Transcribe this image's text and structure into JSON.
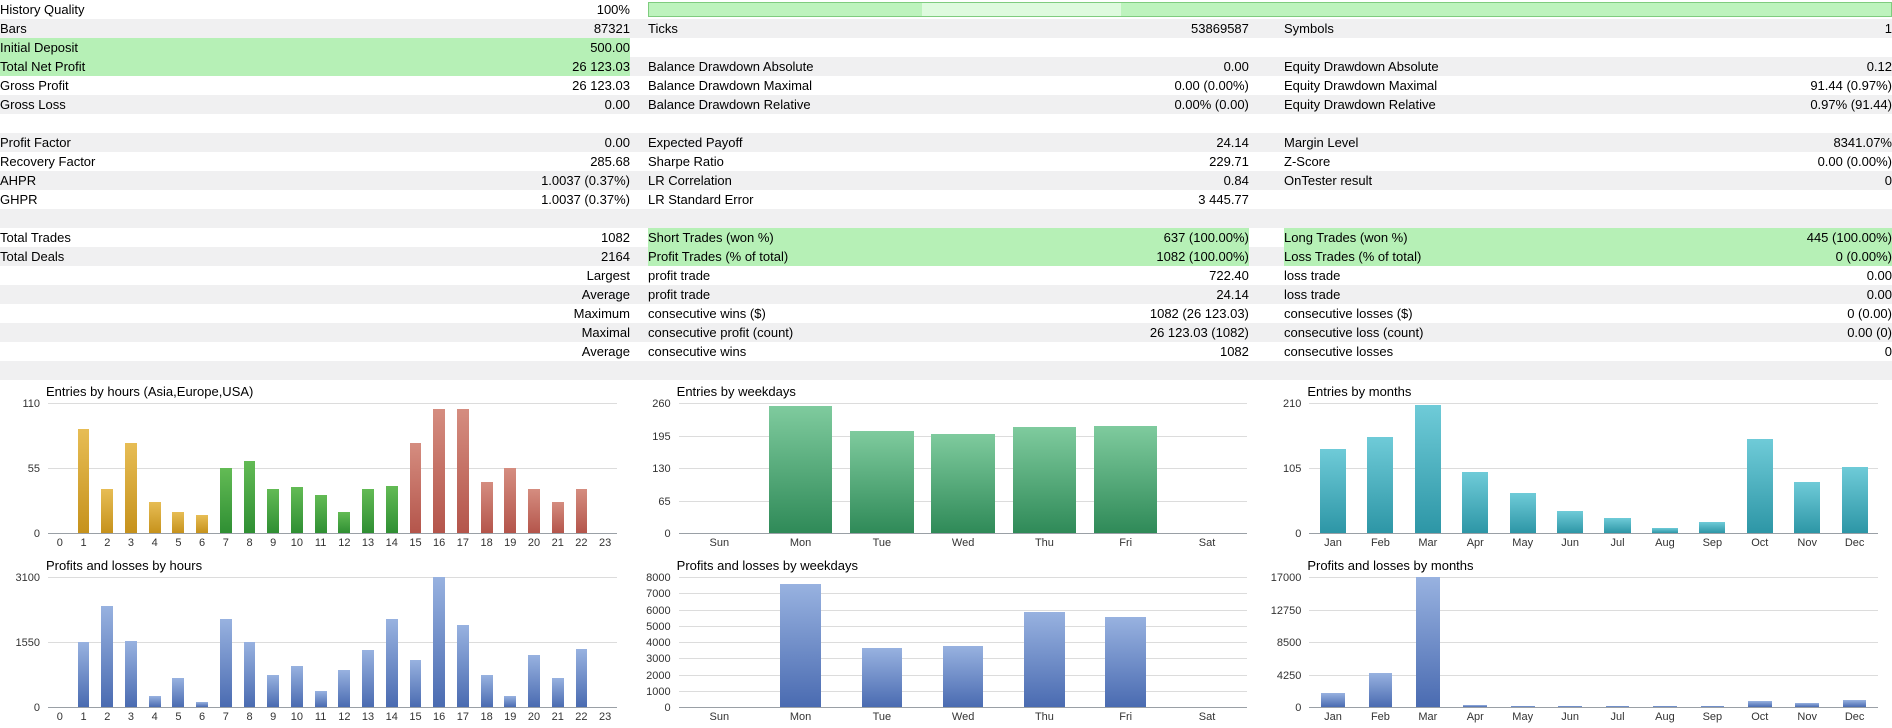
{
  "report": {
    "highlight_color": "#b6f0b6",
    "alt_row_color": "#f0f0f1",
    "history_quality_bar_color": "#bdf3bd",
    "rows": [
      {
        "l1": "History Quality",
        "v1": "100%",
        "progress": true
      },
      {
        "l1": "Bars",
        "v1": "87321",
        "l2": "Ticks",
        "v2": "53869587",
        "l3": "Symbols",
        "v3": "1"
      },
      {
        "l1": "Initial Deposit",
        "v1": "500.00",
        "hl": [
          "left"
        ]
      },
      {
        "l1": "Total Net Profit",
        "v1": "26 123.03",
        "l2": "Balance Drawdown Absolute",
        "v2": "0.00",
        "l3": "Equity Drawdown Absolute",
        "v3": "0.12",
        "hl": [
          "left"
        ]
      },
      {
        "l1": "Gross Profit",
        "v1": "26 123.03",
        "l2": "Balance Drawdown Maximal",
        "v2": "0.00 (0.00%)",
        "l3": "Equity Drawdown Maximal",
        "v3": "91.44 (0.97%)"
      },
      {
        "l1": "Gross Loss",
        "v1": "0.00",
        "l2": "Balance Drawdown Relative",
        "v2": "0.00% (0.00)",
        "l3": "Equity Drawdown Relative",
        "v3": "0.97% (91.44)"
      },
      {},
      {
        "l1": "Profit Factor",
        "v1": "0.00",
        "l2": "Expected Payoff",
        "v2": "24.14",
        "l3": "Margin Level",
        "v3": "8341.07%"
      },
      {
        "l1": "Recovery Factor",
        "v1": "285.68",
        "l2": "Sharpe Ratio",
        "v2": "229.71",
        "l3": "Z-Score",
        "v3": "0.00 (0.00%)"
      },
      {
        "l1": "AHPR",
        "v1": "1.0037 (0.37%)",
        "l2": "LR Correlation",
        "v2": "0.84",
        "l3": "OnTester result",
        "v3": "0"
      },
      {
        "l1": "GHPR",
        "v1": "1.0037 (0.37%)",
        "l2": "LR Standard Error",
        "v2": "3 445.77"
      },
      {},
      {
        "l1": "Total Trades",
        "v1": "1082",
        "l2": "Short Trades (won %)",
        "v2": "637 (100.00%)",
        "l3": "Long Trades (won %)",
        "v3": "445 (100.00%)",
        "hl": [
          "mid",
          "right"
        ]
      },
      {
        "l1": "Total Deals",
        "v1": "2164",
        "l2": "Profit Trades (% of total)",
        "v2": "1082 (100.00%)",
        "l3": "Loss Trades (% of total)",
        "v3": "0 (0.00%)",
        "hl": [
          "mid",
          "right"
        ]
      },
      {
        "v1": "Largest",
        "l2": "profit trade",
        "v2": "722.40",
        "l3": "loss trade",
        "v3": "0.00"
      },
      {
        "v1": "Average",
        "l2": "profit trade",
        "v2": "24.14",
        "l3": "loss trade",
        "v3": "0.00"
      },
      {
        "v1": "Maximum",
        "l2": "consecutive wins ($)",
        "v2": "1082 (26 123.03)",
        "l3": "consecutive losses ($)",
        "v3": "0 (0.00)"
      },
      {
        "v1": "Maximal",
        "l2": "consecutive profit (count)",
        "v2": "26 123.03 (1082)",
        "l3": "consecutive loss (count)",
        "v3": "0.00 (0)"
      },
      {
        "v1": "Average",
        "l2": "consecutive wins",
        "v2": "1082",
        "l3": "consecutive losses",
        "v3": "0"
      },
      {}
    ]
  },
  "chart_data": [
    {
      "id": "entries-by-hours",
      "type": "bar",
      "title": "Entries by hours (Asia,Europe,USA)",
      "x": [
        "0",
        "1",
        "2",
        "3",
        "4",
        "5",
        "6",
        "7",
        "8",
        "9",
        "10",
        "11",
        "12",
        "13",
        "14",
        "15",
        "16",
        "17",
        "18",
        "19",
        "20",
        "21",
        "22",
        "23"
      ],
      "values": [
        0,
        88,
        37,
        76,
        26,
        18,
        15,
        55,
        61,
        37,
        39,
        32,
        18,
        37,
        40,
        76,
        105,
        105,
        43,
        55,
        37,
        26,
        37,
        0
      ],
      "yticks": [
        0,
        55,
        110
      ],
      "ymax": 110,
      "bar_ratio": 0.5,
      "session_keys": [
        "asia",
        "asia",
        "asia",
        "asia",
        "asia",
        "asia",
        "asia",
        "europe",
        "europe",
        "europe",
        "europe",
        "europe",
        "europe",
        "europe",
        "europe",
        "usa",
        "usa",
        "usa",
        "usa",
        "usa",
        "usa",
        "usa",
        "usa",
        "usa"
      ],
      "palette": {
        "asia": [
          "#e7bd55",
          "#c6921c"
        ],
        "europe": [
          "#63bb55",
          "#2f8f33"
        ],
        "usa": [
          "#d58d80",
          "#b4554b"
        ]
      },
      "legend_position": "none",
      "grid": true
    },
    {
      "id": "entries-by-weekdays",
      "type": "bar",
      "title": "Entries by weekdays",
      "x": [
        "Sun",
        "Mon",
        "Tue",
        "Wed",
        "Thu",
        "Fri",
        "Sat"
      ],
      "values": [
        0,
        255,
        205,
        198,
        212,
        215,
        0
      ],
      "yticks": [
        0,
        65,
        130,
        195,
        260
      ],
      "ymax": 260,
      "bar_ratio": 0.78,
      "color": [
        "#7fcb9e",
        "#2f8a58"
      ],
      "legend_position": "none",
      "grid": true
    },
    {
      "id": "entries-by-months",
      "type": "bar",
      "title": "Entries by months",
      "x": [
        "Jan",
        "Feb",
        "Mar",
        "Apr",
        "May",
        "Jun",
        "Jul",
        "Aug",
        "Sep",
        "Oct",
        "Nov",
        "Dec"
      ],
      "values": [
        135,
        155,
        207,
        98,
        65,
        35,
        25,
        8,
        18,
        152,
        82,
        107
      ],
      "yticks": [
        0,
        105,
        210
      ],
      "ymax": 210,
      "bar_ratio": 0.55,
      "color": [
        "#6fcbd8",
        "#2d96a6"
      ],
      "legend_position": "none",
      "grid": true
    },
    {
      "id": "pl-by-hours",
      "type": "bar",
      "title": "Profits and losses by hours",
      "x": [
        "0",
        "1",
        "2",
        "3",
        "4",
        "5",
        "6",
        "7",
        "8",
        "9",
        "10",
        "11",
        "12",
        "13",
        "14",
        "15",
        "16",
        "17",
        "18",
        "19",
        "20",
        "21",
        "22",
        "23"
      ],
      "values": [
        0,
        1550,
        2420,
        1580,
        270,
        700,
        130,
        2090,
        1550,
        775,
        975,
        370,
        875,
        1350,
        2090,
        1110,
        3100,
        1950,
        775,
        270,
        1250,
        700,
        1380,
        0
      ],
      "yticks": [
        0,
        1550,
        3100
      ],
      "ymax": 3100,
      "bar_ratio": 0.5,
      "color": [
        "#98b2e0",
        "#4a6bb1"
      ],
      "legend_position": "none",
      "grid": true
    },
    {
      "id": "pl-by-weekdays",
      "type": "bar",
      "title": "Profits and losses by weekdays",
      "x": [
        "Sun",
        "Mon",
        "Tue",
        "Wed",
        "Thu",
        "Fri",
        "Sat"
      ],
      "values": [
        0,
        7600,
        3650,
        3750,
        5830,
        5570,
        0
      ],
      "yticks": [
        0,
        1000,
        2000,
        3000,
        4000,
        5000,
        6000,
        7000,
        8000
      ],
      "ymax": 8000,
      "bar_ratio": 0.5,
      "color": [
        "#98b2e0",
        "#4a6bb1"
      ],
      "legend_position": "none",
      "grid": true
    },
    {
      "id": "pl-by-months",
      "type": "bar",
      "title": "Profits and losses by months",
      "x": [
        "Jan",
        "Feb",
        "Mar",
        "Apr",
        "May",
        "Jun",
        "Jul",
        "Aug",
        "Sep",
        "Oct",
        "Nov",
        "Dec"
      ],
      "values": [
        1850,
        4430,
        17000,
        280,
        190,
        60,
        90,
        40,
        90,
        740,
        550,
        925
      ],
      "yticks": [
        0,
        4250,
        8500,
        12750,
        17000
      ],
      "ymax": 17000,
      "bar_ratio": 0.5,
      "color": [
        "#98b2e0",
        "#4a6bb1"
      ],
      "legend_position": "none",
      "grid": true
    }
  ]
}
